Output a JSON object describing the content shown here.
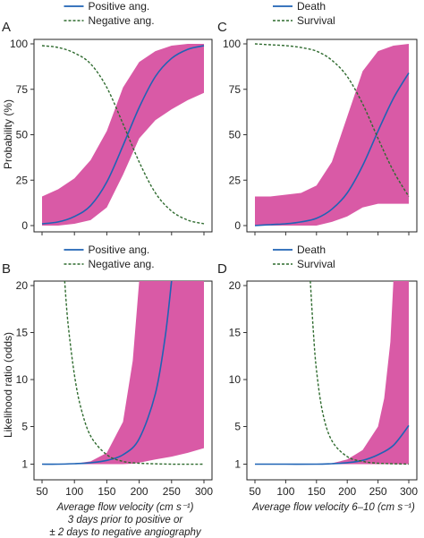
{
  "colors": {
    "band": "#d95aa6",
    "blue": "#1f63b5",
    "green": "#2f6b2f",
    "axis": "#333333",
    "frame": "#222222"
  },
  "labels": {
    "ylabel_top": "Probability (%)",
    "ylabel_bottom": "Likelihood ratio (odds)",
    "xlabel_left": [
      "Average flow velocity (cm s⁻¹)",
      "3 days prior to positive or",
      "± 2 days to negative angiography"
    ],
    "xlabel_right": "Average flow velocity 6–10 (cm s⁻¹)"
  },
  "chart_data": [
    {
      "panel": "A",
      "type": "line",
      "legend": [
        "Positive ang.",
        "Negative ang."
      ],
      "xlim": [
        50,
        300
      ],
      "ylim": [
        0,
        100
      ],
      "yticks": [
        0,
        25,
        50,
        75,
        100
      ],
      "xticks": [],
      "series": [
        {
          "name": "Positive ang.",
          "style": "solid",
          "color": "blue",
          "x": [
            50,
            75,
            100,
            125,
            150,
            175,
            200,
            225,
            250,
            275,
            300
          ],
          "y": [
            1,
            2,
            5,
            11,
            24,
            44,
            65,
            82,
            92,
            97,
            99
          ]
        },
        {
          "name": "Negative ang.",
          "style": "dashed",
          "color": "green",
          "x": [
            50,
            75,
            100,
            125,
            150,
            175,
            200,
            225,
            250,
            275,
            300
          ],
          "y": [
            99,
            98,
            95,
            89,
            76,
            56,
            35,
            18,
            8,
            3,
            1
          ]
        }
      ],
      "band": {
        "x": [
          50,
          75,
          100,
          125,
          150,
          175,
          200,
          225,
          250,
          275,
          300
        ],
        "lower": [
          0,
          0,
          1,
          3,
          10,
          28,
          48,
          58,
          64,
          69,
          73
        ],
        "upper": [
          16,
          20,
          26,
          36,
          52,
          76,
          90,
          96,
          99,
          100,
          100
        ]
      }
    },
    {
      "panel": "C",
      "type": "line",
      "legend": [
        "Death",
        "Survival"
      ],
      "xlim": [
        50,
        300
      ],
      "ylim": [
        0,
        100
      ],
      "yticks": [
        0,
        25,
        50,
        75,
        100
      ],
      "xticks": [],
      "series": [
        {
          "name": "Death",
          "style": "solid",
          "color": "blue",
          "x": [
            50,
            75,
            100,
            125,
            150,
            175,
            200,
            225,
            250,
            275,
            300
          ],
          "y": [
            0,
            0.5,
            1,
            2,
            4,
            9,
            18,
            33,
            52,
            70,
            84
          ]
        },
        {
          "name": "Survival",
          "style": "dashed",
          "color": "green",
          "x": [
            50,
            75,
            100,
            125,
            150,
            175,
            200,
            225,
            250,
            275,
            300
          ],
          "y": [
            100,
            99.5,
            99,
            98,
            96,
            91,
            82,
            67,
            48,
            30,
            16
          ]
        }
      ],
      "band": {
        "x": [
          50,
          75,
          100,
          125,
          150,
          175,
          200,
          225,
          250,
          275,
          300
        ],
        "lower": [
          0,
          0,
          0,
          0,
          0,
          2,
          5,
          10,
          12,
          12,
          12
        ],
        "upper": [
          16,
          16,
          17,
          18,
          22,
          35,
          60,
          85,
          96,
          99,
          100
        ]
      }
    },
    {
      "panel": "B",
      "type": "line",
      "legend": [
        "Positive ang.",
        "Negative ang."
      ],
      "xlim": [
        50,
        300
      ],
      "ylim": [
        0,
        20
      ],
      "yticks": [
        1,
        5,
        10,
        15,
        20
      ],
      "xticks": [
        50,
        100,
        150,
        200,
        250,
        300
      ],
      "series": [
        {
          "name": "Positive ang.",
          "style": "solid",
          "color": "blue",
          "x": [
            50,
            75,
            100,
            125,
            150,
            175,
            200,
            225,
            240,
            250
          ],
          "y": [
            1,
            1,
            1.05,
            1.15,
            1.4,
            2.0,
            3.7,
            8.5,
            14.5,
            20.5
          ]
        },
        {
          "name": "Negative ang.",
          "style": "dashed",
          "color": "green",
          "x": [
            85,
            90,
            100,
            110,
            125,
            150,
            175,
            200,
            250,
            300
          ],
          "y": [
            20.5,
            16,
            10.5,
            7,
            4,
            2,
            1.3,
            1.1,
            1.0,
            1.0
          ]
        }
      ],
      "band": {
        "x": [
          50,
          75,
          100,
          125,
          150,
          175,
          190,
          200,
          225,
          250,
          275,
          300
        ],
        "lower": [
          1,
          1,
          1,
          1,
          1,
          1,
          1.05,
          1.15,
          1.5,
          1.8,
          2.2,
          2.7
        ],
        "upper": [
          1,
          1,
          1.05,
          1.3,
          2.2,
          5.5,
          12,
          20.5,
          20.5,
          20.5,
          20.5,
          20.5
        ]
      }
    },
    {
      "panel": "D",
      "type": "line",
      "legend": [
        "Death",
        "Survival"
      ],
      "xlim": [
        50,
        300
      ],
      "ylim": [
        0,
        20
      ],
      "yticks": [
        1,
        5,
        10,
        15,
        20
      ],
      "xticks": [
        50,
        100,
        150,
        200,
        250,
        300
      ],
      "series": [
        {
          "name": "Death",
          "style": "solid",
          "color": "blue",
          "x": [
            50,
            100,
            150,
            175,
            200,
            225,
            250,
            275,
            300
          ],
          "y": [
            1,
            1,
            1,
            1.05,
            1.15,
            1.4,
            2.0,
            3.0,
            5.1
          ]
        },
        {
          "name": "Survival",
          "style": "dashed",
          "color": "green",
          "x": [
            140,
            145,
            150,
            160,
            175,
            200,
            225,
            250,
            300
          ],
          "y": [
            20.5,
            15,
            11,
            6.5,
            3.5,
            1.8,
            1.3,
            1.1,
            1.0
          ]
        }
      ],
      "band": {
        "x": [
          50,
          150,
          175,
          200,
          225,
          250,
          260,
          270,
          275,
          285,
          300
        ],
        "lower": [
          1,
          1,
          1,
          1,
          1,
          1,
          1,
          1,
          1,
          1,
          1
        ],
        "upper": [
          1,
          1,
          1.1,
          1.5,
          2.5,
          5,
          8,
          14,
          20.5,
          20.5,
          20.5
        ]
      }
    }
  ]
}
